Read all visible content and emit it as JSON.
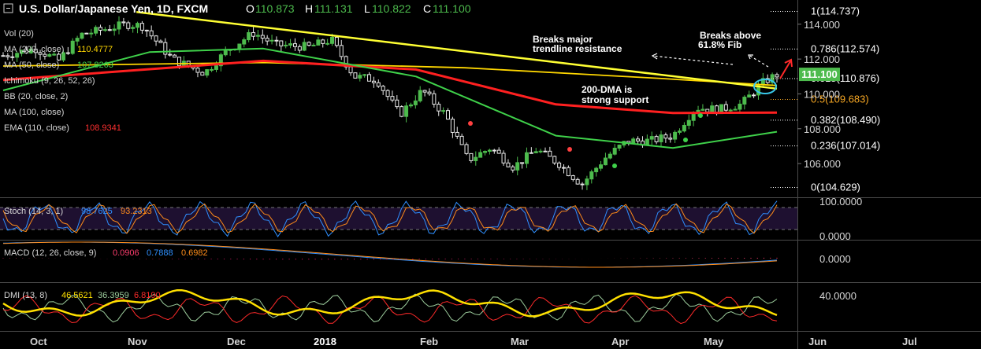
{
  "header": {
    "title": "U.S. Dollar/Japanese Yen, 1D, FXCM",
    "ohlc": [
      {
        "k": "O",
        "v": "110.873"
      },
      {
        "k": "H",
        "v": "111.131"
      },
      {
        "k": "L",
        "v": "110.822"
      },
      {
        "k": "C",
        "v": "111.100"
      }
    ]
  },
  "indicators": [
    {
      "label": "Vol (20)",
      "value": "",
      "color": "#d6d6d6"
    },
    {
      "label": "MA (200, close)",
      "value": "110.4777",
      "color": "#ffd700"
    },
    {
      "label": "MA (50, close)",
      "value": "107.8263",
      "color": "#3fd14a"
    },
    {
      "label": "Ichimoku (9, 26, 52, 26)",
      "value": "",
      "color": "#d6d6d6"
    },
    {
      "label": "BB (20, close, 2)",
      "value": "",
      "color": "#d6d6d6"
    },
    {
      "label": "MA (100, close)",
      "value": "",
      "color": "#d6d6d6"
    },
    {
      "label": "EMA (110, close)",
      "value": "108.9341",
      "color": "#ff3030"
    }
  ],
  "annotations": [
    {
      "text": [
        "Breaks major",
        "trendline resistance"
      ]
    },
    {
      "text": [
        "Breaks above",
        "61.8% Fib"
      ]
    },
    {
      "text": [
        "200-DMA is",
        "strong support"
      ]
    }
  ],
  "fib_levels": [
    {
      "label": "1(114.737)",
      "price": 114.737,
      "color": "#ffffff"
    },
    {
      "label": "0.786(112.574)",
      "price": 112.574,
      "color": "#ffffff"
    },
    {
      "label": "0.618(110.876)",
      "price": 110.876,
      "color": "#ffffff"
    },
    {
      "label": "0.5(109.683)",
      "price": 109.683,
      "color": "#f5a623"
    },
    {
      "label": "0.382(108.490)",
      "price": 108.49,
      "color": "#ffffff"
    },
    {
      "label": "0.236(107.014)",
      "price": 107.014,
      "color": "#ffffff"
    },
    {
      "label": "0(104.629)",
      "price": 104.629,
      "color": "#ffffff"
    }
  ],
  "price_axis": {
    "ticks": [
      "114.000",
      "112.000",
      "110.000",
      "108.000",
      "106.000"
    ],
    "tick_values": [
      114,
      112,
      110,
      108,
      106
    ],
    "last_price": "111.100",
    "last_value": 111.1,
    "range": [
      104.2,
      115.3
    ]
  },
  "stoch": {
    "label": "Stoch (14, 3, 1)",
    "k": "98.7625",
    "d": "93.2313",
    "k_color": "#2f8fff",
    "d_color": "#ff8c1a",
    "ticks": [
      "100.0000",
      "0.0000"
    ]
  },
  "macd": {
    "label": "MACD (12, 26, close, 9)",
    "hist": "0.0906",
    "macd": "0.7888",
    "signal": "0.6982",
    "hist_color": "#ff3d6e",
    "macd_color": "#2f8fff",
    "signal_color": "#ff8c1a",
    "ticks": [
      "0.0000"
    ]
  },
  "dmi": {
    "label": "DMI (13, 8)",
    "adx": "46.5621",
    "plus_di": "36.3959",
    "minus_di": "6.8190",
    "adx_color": "#ffe000",
    "plus_color": "#9ccc9c",
    "minus_color": "#ff2a2a",
    "ticks": [
      "40.0000"
    ]
  },
  "time_axis": {
    "labels": [
      "Oct",
      "Nov",
      "Dec",
      "2018",
      "Feb",
      "Mar",
      "Apr",
      "May",
      "Jun",
      "Jul"
    ]
  },
  "chart_data": {
    "type": "candlestick",
    "title": "U.S. Dollar/Japanese Yen, 1D, FXCM",
    "x_range": [
      "2017-09-26",
      "2018-05-22"
    ],
    "y_range": [
      104.2,
      115.3
    ],
    "close_series": [
      [
        "2017-09-26",
        112.2
      ],
      [
        "2017-10-06",
        112.6
      ],
      [
        "2017-10-13",
        111.9
      ],
      [
        "2017-10-20",
        113.4
      ],
      [
        "2017-10-27",
        113.7
      ],
      [
        "2017-11-03",
        114.0
      ],
      [
        "2017-11-08",
        113.9
      ],
      [
        "2017-11-17",
        112.0
      ],
      [
        "2017-11-27",
        111.2
      ],
      [
        "2017-12-04",
        112.5
      ],
      [
        "2017-12-12",
        113.5
      ],
      [
        "2017-12-19",
        112.8
      ],
      [
        "2017-12-29",
        112.7
      ],
      [
        "2018-01-05",
        113.1
      ],
      [
        "2018-01-12",
        111.0
      ],
      [
        "2018-01-19",
        110.8
      ],
      [
        "2018-01-26",
        108.8
      ],
      [
        "2018-02-02",
        110.2
      ],
      [
        "2018-02-09",
        108.8
      ],
      [
        "2018-02-16",
        106.2
      ],
      [
        "2018-02-23",
        106.9
      ],
      [
        "2018-03-02",
        105.8
      ],
      [
        "2018-03-09",
        106.8
      ],
      [
        "2018-03-16",
        106.0
      ],
      [
        "2018-03-23",
        104.8
      ],
      [
        "2018-03-30",
        106.3
      ],
      [
        "2018-04-06",
        107.3
      ],
      [
        "2018-04-13",
        107.3
      ],
      [
        "2018-04-20",
        107.6
      ],
      [
        "2018-04-27",
        109.2
      ],
      [
        "2018-05-04",
        109.1
      ],
      [
        "2018-05-11",
        109.4
      ],
      [
        "2018-05-18",
        110.7
      ],
      [
        "2018-05-22",
        111.1
      ]
    ],
    "trendline": [
      [
        "2017-11-06",
        114.7
      ],
      [
        "2018-05-22",
        110.3
      ]
    ],
    "ma200": [
      [
        "2017-09-26",
        111.6
      ],
      [
        "2017-12-15",
        111.8
      ],
      [
        "2018-02-15",
        111.5
      ],
      [
        "2018-04-15",
        110.9
      ],
      [
        "2018-05-22",
        110.48
      ]
    ],
    "ema110": [
      [
        "2017-09-26",
        110.8
      ],
      [
        "2017-12-15",
        111.9
      ],
      [
        "2018-01-31",
        111.4
      ],
      [
        "2018-03-15",
        109.4
      ],
      [
        "2018-04-20",
        108.9
      ],
      [
        "2018-05-22",
        108.93
      ]
    ],
    "ma50": [
      [
        "2017-09-26",
        110.2
      ],
      [
        "2017-11-10",
        112.4
      ],
      [
        "2017-12-15",
        112.6
      ],
      [
        "2018-01-31",
        111.0
      ],
      [
        "2018-03-15",
        107.6
      ],
      [
        "2018-04-20",
        106.9
      ],
      [
        "2018-05-22",
        107.83
      ]
    ],
    "xlabel": "",
    "ylabel": ""
  }
}
